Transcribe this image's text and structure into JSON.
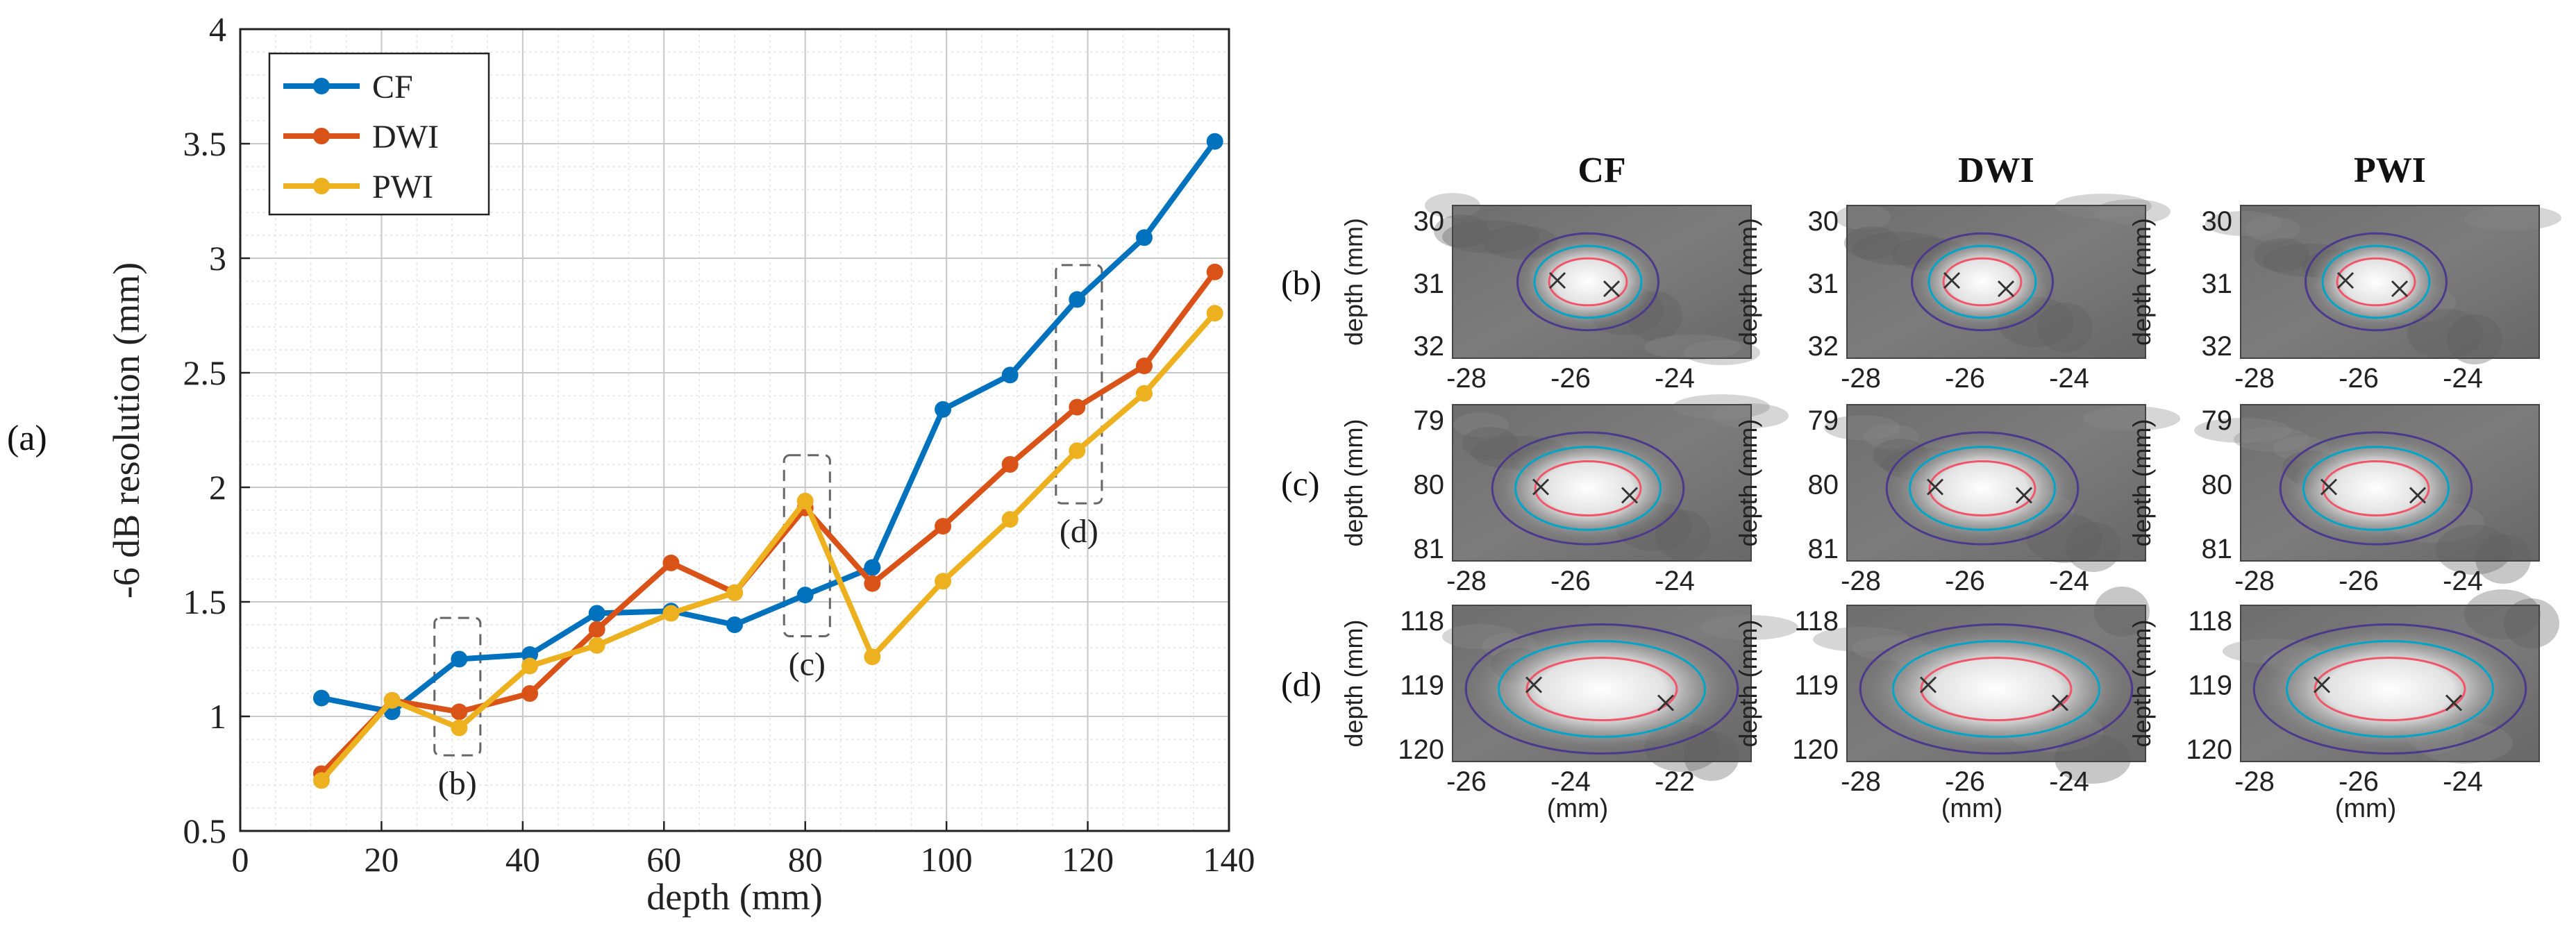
{
  "panel_label": "(a)",
  "chart_data": {
    "type": "line",
    "xlabel": "depth (mm)",
    "ylabel": "-6 dB resolution (mm)",
    "xlim": [
      0,
      140
    ],
    "ylim": [
      0.5,
      4
    ],
    "xticks": [
      0,
      20,
      40,
      60,
      80,
      100,
      120,
      140
    ],
    "yticks": [
      0.5,
      1,
      1.5,
      2,
      2.5,
      3,
      3.5,
      4
    ],
    "grid": true,
    "legend": "top-left",
    "series": [
      {
        "name": "CF",
        "color": "#0072BD",
        "x": [
          11.5,
          21.5,
          31,
          41,
          50.5,
          61,
          70,
          80,
          89.5,
          99.5,
          109,
          118.5,
          128,
          138
        ],
        "y": [
          1.08,
          1.02,
          1.25,
          1.27,
          1.45,
          1.46,
          1.4,
          1.53,
          1.65,
          2.34,
          2.49,
          2.82,
          3.09,
          3.51
        ]
      },
      {
        "name": "DWI",
        "color": "#D95319",
        "x": [
          11.5,
          21.5,
          31,
          41,
          50.5,
          61,
          70,
          80,
          89.5,
          99.5,
          109,
          118.5,
          128,
          138
        ],
        "y": [
          0.75,
          1.07,
          1.02,
          1.1,
          1.38,
          1.67,
          1.54,
          1.91,
          1.58,
          1.83,
          2.1,
          2.35,
          2.53,
          2.94
        ]
      },
      {
        "name": "PWI",
        "color": "#EDB120",
        "x": [
          11.5,
          21.5,
          31,
          41,
          50.5,
          61,
          70,
          80,
          89.5,
          99.5,
          109,
          118.5,
          128,
          138
        ],
        "y": [
          0.72,
          1.07,
          0.95,
          1.22,
          1.31,
          1.45,
          1.54,
          1.94,
          1.26,
          1.59,
          1.86,
          2.16,
          2.41,
          2.76
        ]
      }
    ],
    "annotations": [
      {
        "label": "(b)",
        "x_range": [
          27.5,
          34
        ],
        "y_range": [
          0.83,
          1.43
        ]
      },
      {
        "label": "(c)",
        "x_range": [
          77,
          83.5
        ],
        "y_range": [
          1.35,
          2.14
        ]
      },
      {
        "label": "(d)",
        "x_range": [
          115.5,
          122
        ],
        "y_range": [
          1.93,
          2.97
        ]
      }
    ]
  },
  "grid_figure": {
    "columns": [
      "CF",
      "DWI",
      "PWI"
    ],
    "rows": [
      {
        "label": "(b)",
        "ylabel": "depth (mm)",
        "yticks": [
          "30",
          "31",
          "32"
        ],
        "xticks": [
          "-28",
          "-26",
          "-24"
        ]
      },
      {
        "label": "(c)",
        "ylabel": "depth (mm)",
        "yticks": [
          "79",
          "80",
          "81"
        ],
        "xticks": [
          "-28",
          "-26",
          "-24"
        ]
      },
      {
        "label": "(d)",
        "ylabel": "depth (mm)",
        "yticks": [
          "118",
          "119",
          "120"
        ],
        "xticks_by_column": [
          [
            "-26",
            "-24",
            "-22"
          ],
          [
            "-28",
            "-26",
            "-24"
          ],
          [
            "-28",
            "-26",
            "-24"
          ]
        ],
        "xunit": "(mm)"
      }
    ],
    "contour_colors": [
      "#4B3A8C",
      "#00A5C8",
      "#F0566A"
    ]
  }
}
